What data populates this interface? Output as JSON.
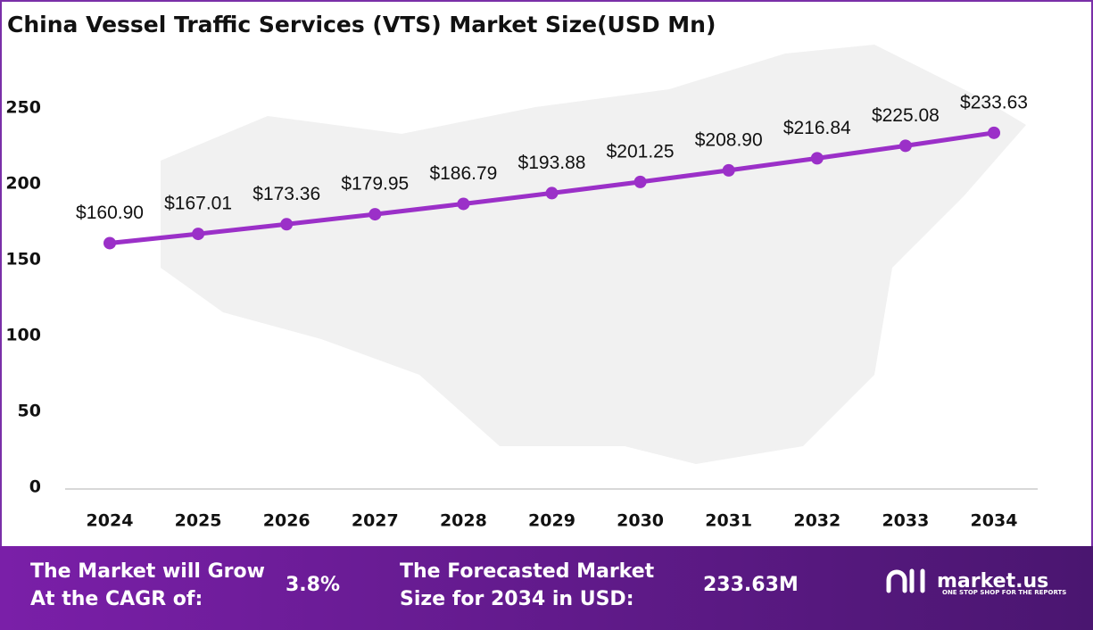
{
  "chart_data": {
    "type": "line",
    "title": "China Vessel Traffic Services (VTS) Market Size(USD Mn)",
    "categories": [
      "2024",
      "2025",
      "2026",
      "2027",
      "2028",
      "2029",
      "2030",
      "2031",
      "2032",
      "2033",
      "2034"
    ],
    "series": [
      {
        "name": "Market Size",
        "color": "#9b30c8",
        "values": [
          160.9,
          167.01,
          173.36,
          179.95,
          186.79,
          193.88,
          201.25,
          208.9,
          216.84,
          225.08,
          233.63
        ],
        "value_labels": [
          "$160.90",
          "$167.01",
          "$173.36",
          "$179.95",
          "$186.79",
          "$193.88",
          "$201.25",
          "$208.90",
          "$216.84",
          "$225.08",
          "$233.63"
        ]
      }
    ],
    "ylim": [
      0,
      250
    ],
    "yticks": [
      0,
      50,
      100,
      150,
      200,
      250
    ],
    "grid": false
  },
  "footer": {
    "cagr_text": [
      "The Market will Grow",
      "At the CAGR of:"
    ],
    "cagr_value": "3.8%",
    "forecast_text": [
      "The Forecasted Market",
      "Size for 2034 in USD:"
    ],
    "forecast_value": "233.63M",
    "brand": "market.us",
    "tagline": "ONE STOP SHOP FOR THE REPORTS"
  }
}
